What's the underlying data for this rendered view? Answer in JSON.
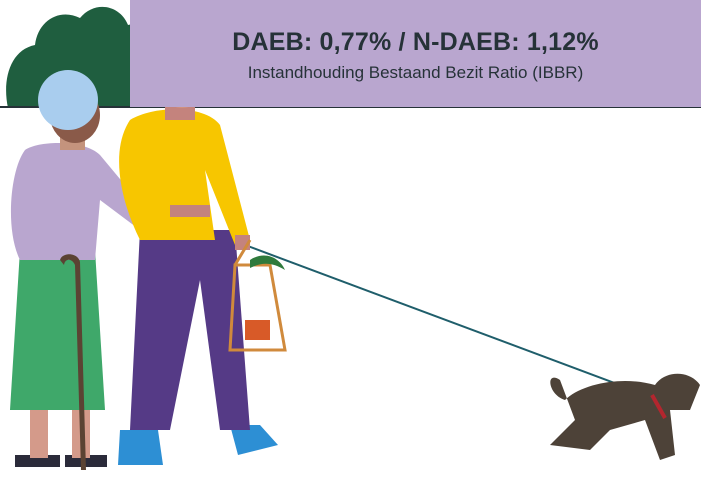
{
  "banner": {
    "title": "DAEB: 0,77% / N-DAEB: 1,12%",
    "subtitle": "Instandhouding Bestaand Bezit Ratio (IBBR)"
  }
}
